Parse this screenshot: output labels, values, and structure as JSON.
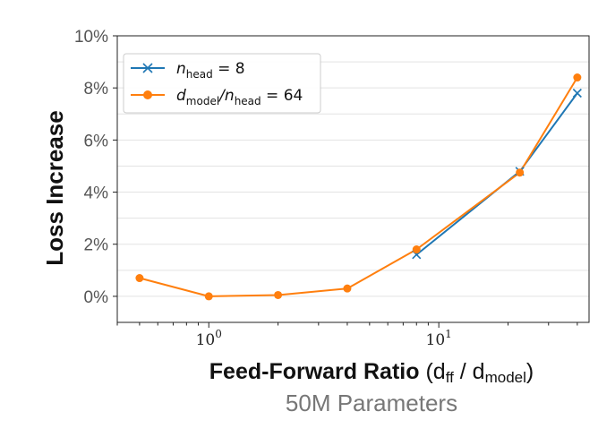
{
  "chart_data": {
    "type": "line",
    "x_scale": "log",
    "xlim": [
      0.4,
      45
    ],
    "ylim": [
      -1,
      10
    ],
    "y_unit": "%",
    "yticks": [
      0,
      2,
      4,
      6,
      8,
      10
    ],
    "ytick_labels": [
      "0%",
      "2%",
      "4%",
      "6%",
      "8%",
      "10%"
    ],
    "xticks": [
      1,
      10
    ],
    "xtick_labels": [
      {
        "base": "10",
        "exp": "0"
      },
      {
        "base": "10",
        "exp": "1"
      }
    ],
    "ylabel": "Loss Increase",
    "xlabel": {
      "bold": "Feed-Forward Ratio",
      "rest_open": " (d",
      "sub1": "ff",
      "rest_mid": " / d",
      "sub2": "model",
      "rest_close": ")"
    },
    "subtitle": "50M Parameters",
    "grid": "horizontal",
    "legend_position": "upper-left",
    "series": [
      {
        "name": {
          "main": "n",
          "sub": "head",
          "rest": " = 8"
        },
        "color": "#1f77b4",
        "marker": "x",
        "x": [
          8,
          22.5,
          40
        ],
        "y": [
          1.6,
          4.8,
          7.8
        ]
      },
      {
        "name": {
          "main": "d",
          "sub": "model",
          "mid": "/n",
          "sub2": "head",
          "rest": " = 64"
        },
        "color": "#ff7f0e",
        "marker": "circle",
        "x": [
          0.5,
          1,
          2,
          4,
          8,
          22.5,
          40
        ],
        "y": [
          0.7,
          0.0,
          0.05,
          0.3,
          1.8,
          4.75,
          8.4
        ]
      }
    ]
  }
}
